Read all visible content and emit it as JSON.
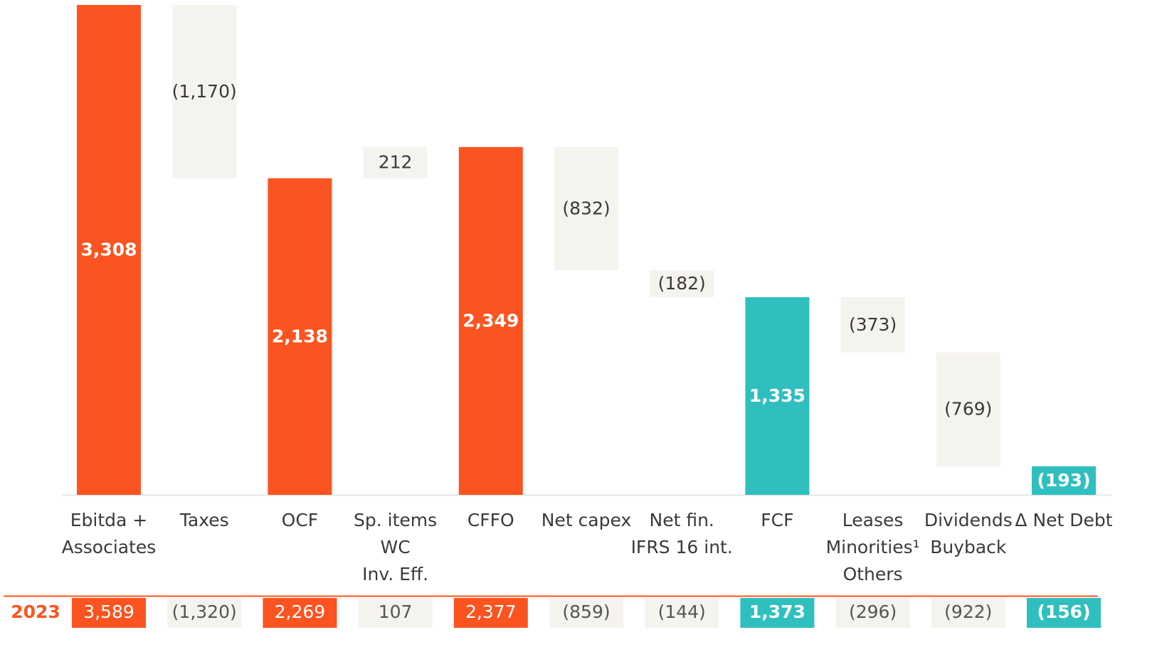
{
  "chart_data": {
    "type": "waterfall",
    "categories": [
      [
        "Ebitda +",
        "Associates"
      ],
      [
        "Taxes"
      ],
      [
        "OCF"
      ],
      [
        "Sp. items",
        "WC",
        "Inv. Eff."
      ],
      [
        "CFFO"
      ],
      [
        "Net capex"
      ],
      [
        "Net fin.",
        "IFRS 16 int."
      ],
      [
        "FCF"
      ],
      [
        "Leases",
        "Minorities¹",
        "Others"
      ],
      [
        "Dividends",
        "Buyback"
      ],
      [
        "Δ Net Debt"
      ]
    ],
    "values": [
      3308,
      -1170,
      2138,
      212,
      2349,
      -832,
      -182,
      1335,
      -373,
      -769,
      -193
    ],
    "value_labels": [
      "3,308",
      "(1,170)",
      "2,138",
      "212",
      "2,349",
      "(832)",
      "(182)",
      "1,335",
      "(373)",
      "(769)",
      "(193)"
    ],
    "measure": [
      "total",
      "relative",
      "total",
      "relative",
      "total",
      "relative",
      "relative",
      "total",
      "relative",
      "relative",
      "total"
    ],
    "colors": [
      "#fb5420",
      "#f5f3ed",
      "#fb5420",
      "#f5f3ed",
      "#fb5420",
      "#f5f3ed",
      "#f5f3ed",
      "#30bfbf",
      "#f5f3ed",
      "#f5f3ed",
      "#30bfbf"
    ],
    "ylim": [
      0,
      3310
    ],
    "comparison": {
      "label": "2023",
      "values": [
        3589,
        -1320,
        2269,
        107,
        2377,
        -859,
        -144,
        1373,
        -296,
        -922,
        -156
      ],
      "value_labels": [
        "3,589",
        "(1,320)",
        "2,269",
        "107",
        "2,377",
        "(859)",
        "(144)",
        "1,373",
        "(296)",
        "(922)",
        "(156)"
      ]
    }
  }
}
